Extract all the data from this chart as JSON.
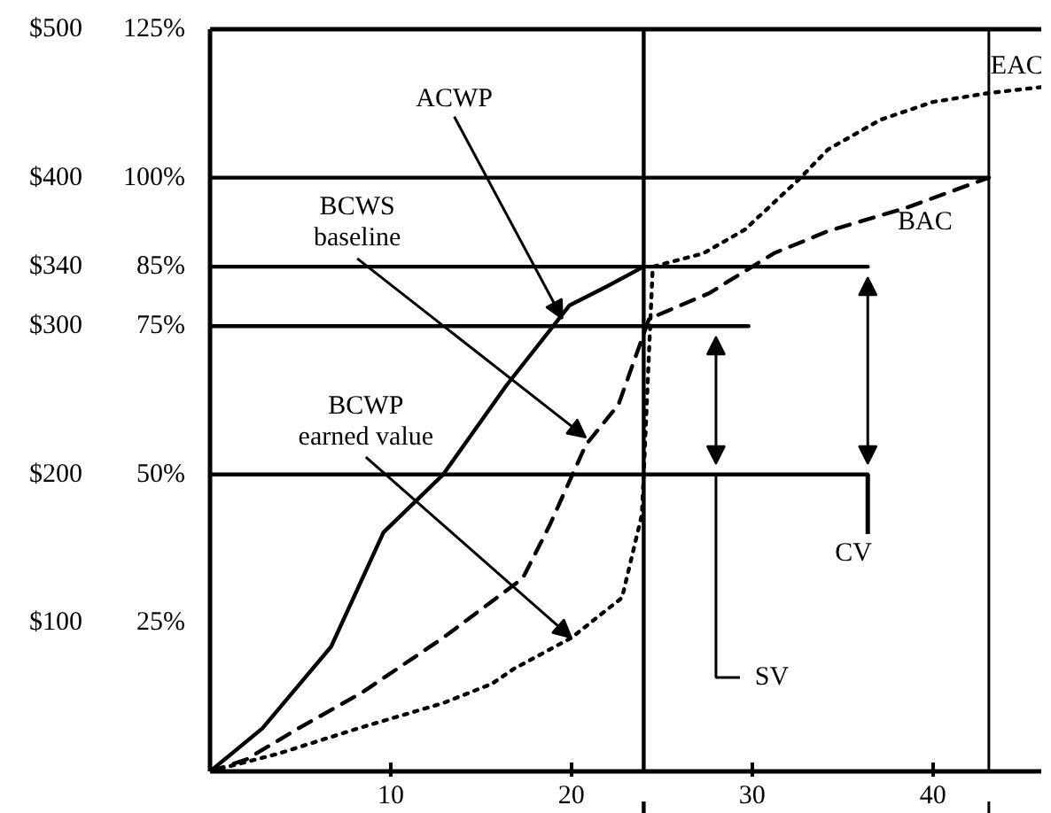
{
  "chart_data": {
    "type": "line",
    "xlim": [
      0,
      46
    ],
    "xticks": [
      10,
      20,
      30,
      40
    ],
    "ylim": [
      0,
      500
    ],
    "yticks": [
      {
        "value": 100,
        "label": "$100"
      },
      {
        "value": 200,
        "label": "$200"
      },
      {
        "value": 300,
        "label": "$300"
      },
      {
        "value": 340,
        "label": "$340"
      },
      {
        "value": 400,
        "label": "$400"
      },
      {
        "value": 500,
        "label": "$500"
      }
    ],
    "y2lim": [
      0,
      125
    ],
    "y2ticks": [
      {
        "value": 25,
        "label": "25%"
      },
      {
        "value": 50,
        "label": "50%"
      },
      {
        "value": 75,
        "label": "75%"
      },
      {
        "value": 85,
        "label": "85%"
      },
      {
        "value": 100,
        "label": "100%"
      },
      {
        "value": 125,
        "label": "125%"
      }
    ],
    "grid": false,
    "series": [
      {
        "color": "#000000",
        "line_style": "solid",
        "x": [
          0,
          2.9,
          6.7,
          9.6,
          12.9,
          16.4,
          19.9,
          22,
          24
        ],
        "values": [
          0,
          29,
          84,
          161,
          200,
          260,
          314,
          327,
          340
        ]
      },
      {
        "color": "#000000",
        "line_style": "dashed",
        "x": [
          0,
          2,
          4.9,
          8.4,
          12.9,
          17.3,
          18.8,
          20.8,
          22.6,
          24.3,
          27.6,
          31.2,
          34.2,
          38.6,
          43.1
        ],
        "values": [
          0,
          8,
          29,
          53,
          90,
          130,
          166,
          220,
          247,
          305,
          322,
          349,
          364,
          380,
          400
        ]
      },
      {
        "color": "#000000",
        "line_style": "dotted",
        "x": [
          0,
          3.8,
          8.2,
          12.9,
          15.6,
          16.8,
          20,
          22.8,
          23.9,
          24,
          24.5,
          27.3,
          29.6,
          32.6,
          34.2,
          37.1,
          40,
          43.1,
          46
        ],
        "values": [
          0,
          12,
          29,
          46,
          59,
          69,
          90,
          117,
          173,
          200,
          340,
          349,
          365,
          399,
          419,
          439,
          451,
          457,
          461
        ]
      },
      {
        "color": "#000000",
        "line_style": "solid",
        "x": [
          0,
          43.1
        ],
        "values": [
          400,
          400
        ]
      },
      {
        "color": "#000000",
        "line_style": "solid",
        "x": [
          0,
          36.4
        ],
        "values": [
          340,
          340
        ]
      },
      {
        "color": "#000000",
        "line_style": "solid",
        "x": [
          0,
          29.8
        ],
        "values": [
          300,
          300
        ]
      },
      {
        "color": "#000000",
        "line_style": "solid",
        "x": [
          0,
          36.4
        ],
        "values": [
          200,
          200
        ]
      }
    ],
    "ref_lines": [
      {
        "axis": "x",
        "value": 24,
        "label": null
      },
      {
        "axis": "x",
        "value": 43.1,
        "label": null
      }
    ],
    "annotations": [
      {
        "text": "ACWP",
        "x": 19.5,
        "y": 305
      },
      {
        "text": "BCWS\nbaseline",
        "x": 20.8,
        "y": 225
      },
      {
        "text": "BCWP\nearned value",
        "x": 20,
        "y": 90
      },
      {
        "text": "BAC",
        "x": 43.1,
        "y": 400
      },
      {
        "text": "EAC",
        "x": 43.1,
        "y": 457
      },
      {
        "text": "SV",
        "x": 28,
        "y": 200
      },
      {
        "text": "CV",
        "x": 36.4,
        "y": 200
      }
    ]
  }
}
